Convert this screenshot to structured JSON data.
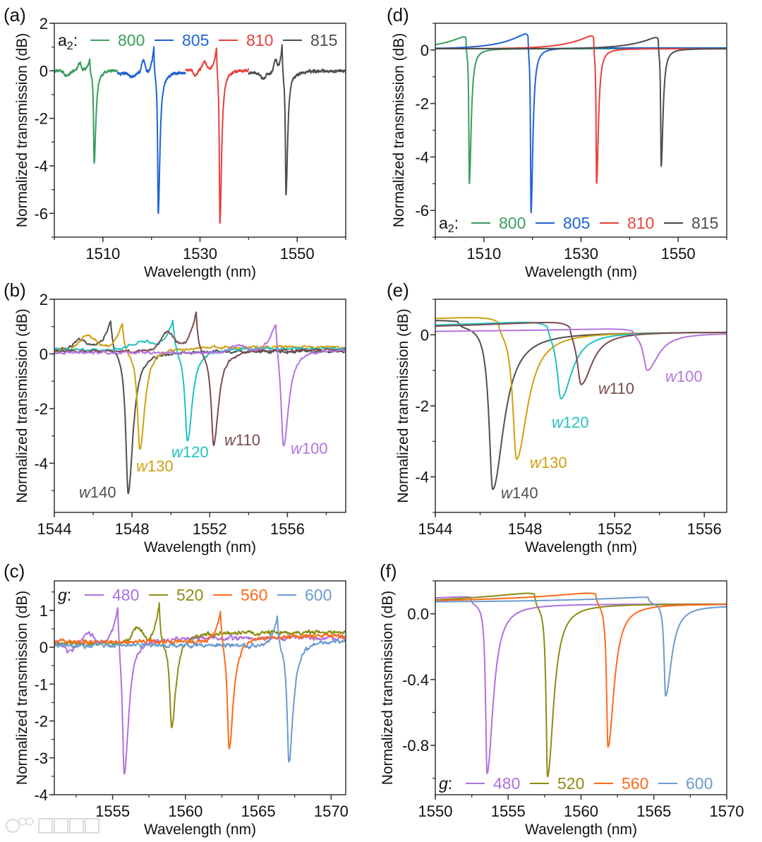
{
  "watermark_text": "大数跨境",
  "chart_data": [
    {
      "panel": "(a)",
      "type": "line",
      "xlabel": "Wavelength (nm)",
      "ylabel": "Normalized transmission (dB)",
      "xlim": [
        1500,
        1560
      ],
      "ylim": [
        -7,
        2
      ],
      "xticks": [
        1510,
        1530,
        1550
      ],
      "xtick_labels": [
        "1510",
        "1530",
        "1550"
      ],
      "xminor_step": 10,
      "yticks": [
        2,
        0,
        -2,
        -4,
        -6
      ],
      "ytick_labels": [
        "2",
        "0",
        "-2",
        "-4",
        "-6"
      ],
      "yminor_step": 1,
      "legend": {
        "symbol": "a",
        "subscript": "2",
        "sep": ":",
        "placement": "top"
      },
      "measured": true,
      "series": [
        {
          "name": "800",
          "color": "#3a9e5f",
          "range": [
            1500,
            1513
          ],
          "baseline_left": 0.0,
          "baseline_right": 0.05,
          "peak": [
            1507.3,
            0.55
          ],
          "dip": [
            1508.2,
            -3.9
          ],
          "bumps": [
            [
              1505.2,
              0.3,
              0.5
            ],
            [
              1502.5,
              -0.2,
              0.8
            ]
          ]
        },
        {
          "name": "805",
          "color": "#1f63d4",
          "range": [
            1513,
            1527
          ],
          "baseline_left": -0.1,
          "baseline_right": -0.05,
          "peak": [
            1520.5,
            1.05
          ],
          "dip": [
            1521.4,
            -6.0
          ],
          "bumps": [
            [
              1518.3,
              0.55,
              0.5
            ],
            [
              1516,
              -0.15,
              0.8
            ]
          ]
        },
        {
          "name": "810",
          "color": "#e8413c",
          "range": [
            1527,
            1540
          ],
          "baseline_left": 0.05,
          "baseline_right": 0.05,
          "peak": [
            1533.4,
            0.95
          ],
          "dip": [
            1534.1,
            -6.4
          ],
          "bumps": [
            [
              1530.9,
              0.35,
              0.6
            ],
            [
              1529,
              -0.25,
              0.5
            ]
          ]
        },
        {
          "name": "815",
          "color": "#4d4d4d",
          "range": [
            1540,
            1560
          ],
          "baseline_left": -0.1,
          "baseline_right": 0.0,
          "peak": [
            1546.9,
            1.1
          ],
          "dip": [
            1547.7,
            -5.2
          ],
          "bumps": [
            [
              1545.5,
              0.5,
              0.5
            ],
            [
              1543,
              -0.25,
              0.6
            ]
          ]
        }
      ]
    },
    {
      "panel": "(b)",
      "type": "line",
      "xlabel": "Wavelength (nm)",
      "ylabel": "Normalized transmission (dB)",
      "xlim": [
        1544,
        1559
      ],
      "ylim": [
        -5.8,
        2
      ],
      "xticks": [
        1544,
        1548,
        1552,
        1556
      ],
      "xtick_labels": [
        "1544",
        "1548",
        "1552",
        "1556"
      ],
      "xminor_step": 2,
      "yticks": [
        2,
        0,
        -2,
        -4
      ],
      "ytick_labels": [
        "2",
        "0",
        "-2",
        "-4"
      ],
      "yminor_step": 1,
      "measured": true,
      "series": [
        {
          "label_var": "w",
          "label_value": "140",
          "color": "#505050",
          "range": [
            1544,
            1559
          ],
          "baseline_left": 0.2,
          "baseline_right": 0.1,
          "peak": [
            1546.9,
            1.2
          ],
          "dip": [
            1547.8,
            -5.1
          ],
          "bumps": [
            [
              1545.3,
              0.35,
              0.4
            ]
          ]
        },
        {
          "label_var": "w",
          "label_value": "130",
          "color": "#d0a010",
          "range": [
            1544,
            1559
          ],
          "baseline_left": 0.15,
          "baseline_right": 0.25,
          "peak": [
            1547.5,
            1.1
          ],
          "dip": [
            1548.4,
            -3.55
          ],
          "bumps": [
            [
              1545.7,
              0.5,
              0.6
            ]
          ]
        },
        {
          "label_var": "w",
          "label_value": "120",
          "color": "#22c1c3",
          "range": [
            1544,
            1559
          ],
          "baseline_left": 0.15,
          "baseline_right": 0.2,
          "peak": [
            1550.1,
            1.25
          ],
          "dip": [
            1550.85,
            -3.2
          ],
          "bumps": [
            [
              1548.5,
              0.3,
              0.8
            ]
          ]
        },
        {
          "label_var": "w",
          "label_value": "110",
          "color": "#7b4b4b",
          "range": [
            1544,
            1559
          ],
          "baseline_left": 0.1,
          "baseline_right": 0.15,
          "peak": [
            1551.3,
            1.5
          ],
          "dip": [
            1552.2,
            -3.35
          ],
          "bumps": [
            [
              1549.8,
              0.65,
              0.5
            ]
          ]
        },
        {
          "label_var": "w",
          "label_value": "100",
          "color": "#b276e0",
          "range": [
            1544,
            1559
          ],
          "baseline_left": 0.05,
          "baseline_right": 0.15,
          "peak": [
            1555.4,
            1.1
          ],
          "dip": [
            1555.8,
            -3.45
          ],
          "bumps": [
            [
              1553.5,
              0.3,
              0.5
            ]
          ]
        }
      ]
    },
    {
      "panel": "(c)",
      "type": "line",
      "xlabel": "Wavelength (nm)",
      "ylabel": "Normalized transmission (dB)",
      "xlim": [
        1551,
        1571
      ],
      "ylim": [
        -4,
        1.8
      ],
      "xticks": [
        1555,
        1560,
        1565,
        1570
      ],
      "xtick_labels": [
        "1555",
        "1560",
        "1565",
        "1570"
      ],
      "xminor_step": 2.5,
      "yticks": [
        1,
        0,
        -1,
        -2,
        -3,
        -4
      ],
      "ytick_labels": [
        "1",
        "0",
        "-1",
        "-2",
        "-3",
        "-4"
      ],
      "yminor_step": 0.5,
      "legend": {
        "symbol": "g",
        "subscript": "",
        "sep": ":",
        "placement": "top"
      },
      "measured": true,
      "series": [
        {
          "name": "480",
          "color": "#b070e0",
          "range": [
            1551,
            1571
          ],
          "baseline_left": 0.1,
          "baseline_right": 0.25,
          "peak": [
            1555.35,
            1.1
          ],
          "dip": [
            1555.8,
            -3.45
          ],
          "bumps": [
            [
              1553.4,
              0.3,
              0.5
            ],
            [
              1552,
              -0.25,
              0.4
            ]
          ]
        },
        {
          "name": "520",
          "color": "#8c8c14",
          "range": [
            1551,
            1571
          ],
          "baseline_left": 0.1,
          "baseline_right": 0.4,
          "peak": [
            1558.2,
            1.15
          ],
          "dip": [
            1559.05,
            -2.15
          ],
          "bumps": [
            [
              1556.7,
              0.45,
              0.5
            ]
          ]
        },
        {
          "name": "560",
          "color": "#ff6a1a",
          "range": [
            1551,
            1571
          ],
          "baseline_left": 0.15,
          "baseline_right": 0.3,
          "peak": [
            1562.4,
            0.98
          ],
          "dip": [
            1563.0,
            -2.7
          ],
          "bumps": []
        },
        {
          "name": "600",
          "color": "#6b9bcf",
          "range": [
            1551,
            1571
          ],
          "baseline_left": 0.05,
          "baseline_right": 0.2,
          "peak": [
            1566.3,
            0.85
          ],
          "dip": [
            1567.1,
            -3.1
          ],
          "bumps": []
        }
      ]
    },
    {
      "panel": "(d)",
      "type": "line",
      "xlabel": "Wavelength (nm)",
      "ylabel": "Normalized transmission (dB)",
      "xlim": [
        1500,
        1560
      ],
      "ylim": [
        -7,
        1
      ],
      "xticks": [
        1510,
        1530,
        1550
      ],
      "xtick_labels": [
        "1510",
        "1530",
        "1550"
      ],
      "xminor_step": 10,
      "yticks": [
        0,
        -2,
        -4,
        -6
      ],
      "ytick_labels": [
        "0",
        "-2",
        "-4",
        "-6"
      ],
      "yminor_step": 1,
      "legend": {
        "symbol": "a",
        "subscript": "2",
        "sep": ":",
        "placement": "bottom"
      },
      "measured": false,
      "series": [
        {
          "name": "800",
          "color": "#3a9e5f",
          "range": [
            1500,
            1560
          ],
          "baseline_left": 0.05,
          "baseline_right": 0.05,
          "peak": [
            1506.3,
            0.45
          ],
          "dip": [
            1507.0,
            -5.0
          ],
          "bumps": []
        },
        {
          "name": "805",
          "color": "#1f63d4",
          "range": [
            1500,
            1560
          ],
          "baseline_left": 0.05,
          "baseline_right": 0.08,
          "peak": [
            1519.1,
            0.5
          ],
          "dip": [
            1519.7,
            -6.1
          ],
          "bumps": []
        },
        {
          "name": "810",
          "color": "#e8413c",
          "range": [
            1500,
            1560
          ],
          "baseline_left": 0.05,
          "baseline_right": 0.05,
          "peak": [
            1532.6,
            0.45
          ],
          "dip": [
            1533.2,
            -5.0
          ],
          "bumps": []
        },
        {
          "name": "815",
          "color": "#4d4d4d",
          "range": [
            1500,
            1560
          ],
          "baseline_left": 0.05,
          "baseline_right": 0.05,
          "peak": [
            1545.9,
            0.4
          ],
          "dip": [
            1546.5,
            -4.35
          ],
          "bumps": []
        }
      ]
    },
    {
      "panel": "(e)",
      "type": "line",
      "xlabel": "Wavelength (nm)",
      "ylabel": "Normalized transmission (dB)",
      "xlim": [
        1544,
        1557
      ],
      "ylim": [
        -5,
        1
      ],
      "xticks": [
        1544,
        1548,
        1552,
        1556
      ],
      "xtick_labels": [
        "1544",
        "1548",
        "1552",
        "1556"
      ],
      "xminor_step": 2,
      "yticks": [
        0,
        -2,
        -4
      ],
      "ytick_labels": [
        "0",
        "-2",
        "-4"
      ],
      "yminor_step": 1,
      "measured": false,
      "series": [
        {
          "label_var": "w",
          "label_value": "140",
          "color": "#505050",
          "range": [
            1544,
            1557
          ],
          "baseline_left": 0.3,
          "baseline_right": 0.08,
          "peak": [
            1545.0,
            0.37
          ],
          "dip": [
            1546.56,
            -4.35
          ],
          "bumps": []
        },
        {
          "label_var": "w",
          "label_value": "130",
          "color": "#d0a010",
          "range": [
            1544,
            1557
          ],
          "baseline_left": 0.25,
          "baseline_right": 0.08,
          "peak": [
            1546.8,
            0.35
          ],
          "dip": [
            1547.62,
            -3.5
          ],
          "bumps": []
        },
        {
          "label_var": "w",
          "label_value": "120",
          "color": "#22c1c3",
          "range": [
            1544,
            1557
          ],
          "baseline_left": 0.12,
          "baseline_right": 0.08,
          "peak": [
            1549.0,
            0.22
          ],
          "dip": [
            1549.6,
            -1.8
          ],
          "bumps": []
        },
        {
          "label_var": "w",
          "label_value": "110",
          "color": "#7b4b4b",
          "range": [
            1544,
            1557
          ],
          "baseline_left": 0.1,
          "baseline_right": 0.08,
          "peak": [
            1550.0,
            0.2
          ],
          "dip": [
            1550.5,
            -1.4
          ],
          "bumps": []
        },
        {
          "label_var": "w",
          "label_value": "100",
          "color": "#b276e0",
          "range": [
            1544,
            1557
          ],
          "baseline_left": 0.05,
          "baseline_right": 0.05,
          "peak": [
            1552.8,
            0.1
          ],
          "dip": [
            1553.45,
            -1.0
          ],
          "bumps": []
        }
      ]
    },
    {
      "panel": "(f)",
      "type": "line",
      "xlabel": "Wavelength (nm)",
      "ylabel": "Normalized transmission (dB)",
      "xlim": [
        1550,
        1570
      ],
      "ylim": [
        -1.1,
        0.2
      ],
      "xticks": [
        1550,
        1555,
        1560,
        1565,
        1570
      ],
      "xtick_labels": [
        "1550",
        "1555",
        "1560",
        "1565",
        "1570"
      ],
      "xminor_step": 2.5,
      "yticks": [
        0,
        -0.4,
        -0.8
      ],
      "ytick_labels": [
        "0.0",
        "-0.4",
        "-0.8"
      ],
      "yminor_step": 0.2,
      "legend": {
        "symbol": "g",
        "subscript": "",
        "sep": ":",
        "placement": "bottom"
      },
      "measured": false,
      "series": [
        {
          "name": "480",
          "color": "#b070e0",
          "range": [
            1550,
            1570
          ],
          "baseline_left": 0.07,
          "baseline_right": 0.06,
          "peak": [
            1552.4,
            0.1
          ],
          "dip": [
            1553.55,
            -0.97
          ],
          "bumps": []
        },
        {
          "name": "520",
          "color": "#8c8c14",
          "range": [
            1550,
            1570
          ],
          "baseline_left": 0.06,
          "baseline_right": 0.06,
          "peak": [
            1556.8,
            0.12
          ],
          "dip": [
            1557.7,
            -0.99
          ],
          "bumps": []
        },
        {
          "name": "560",
          "color": "#ff6a1a",
          "range": [
            1550,
            1570
          ],
          "baseline_left": 0.07,
          "baseline_right": 0.06,
          "peak": [
            1561.0,
            0.12
          ],
          "dip": [
            1561.85,
            -0.81
          ],
          "bumps": []
        },
        {
          "name": "600",
          "color": "#6b9bcf",
          "range": [
            1550,
            1570
          ],
          "baseline_left": 0.07,
          "baseline_right": 0.05,
          "peak": [
            1564.6,
            0.1
          ],
          "dip": [
            1565.8,
            -0.5
          ],
          "bumps": []
        }
      ]
    }
  ]
}
